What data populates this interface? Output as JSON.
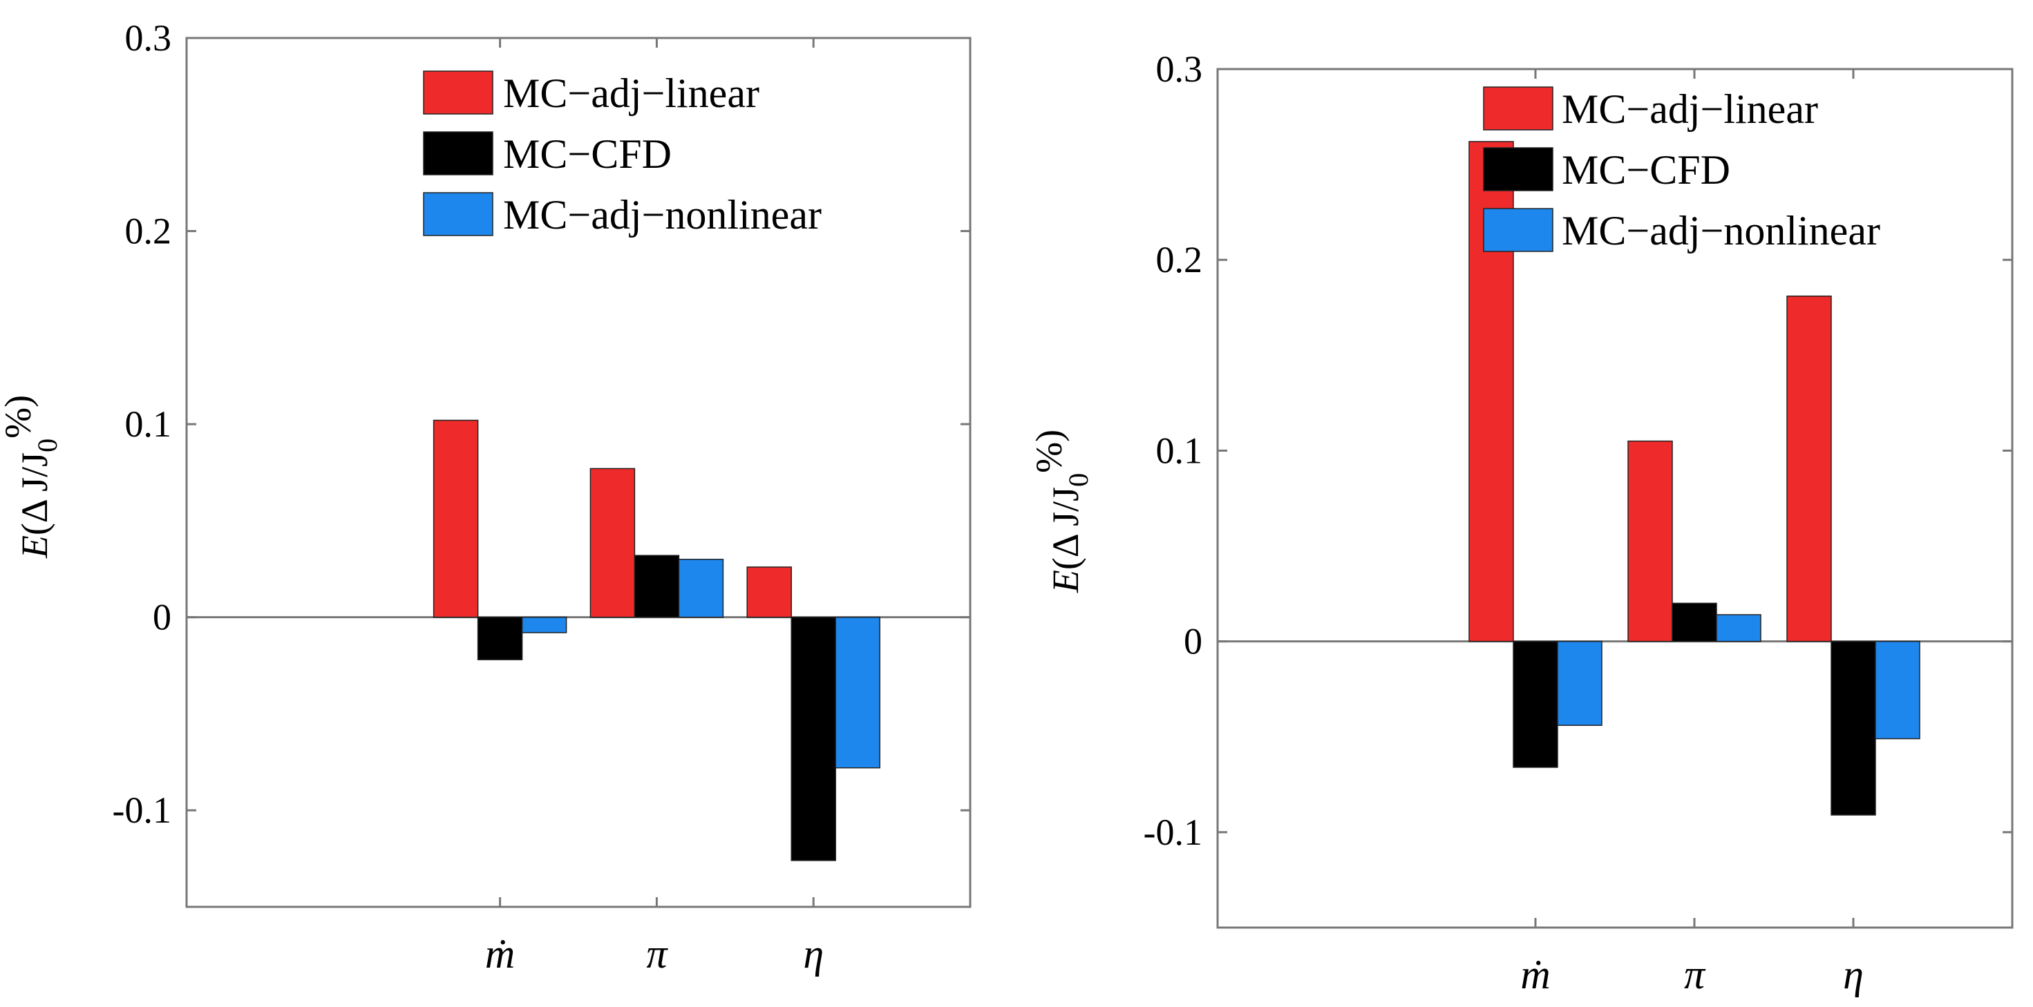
{
  "colors": {
    "MC-adj-linear": "#ee2a2a",
    "MC-CFD": "#000000",
    "MC-adj-nonlinear": "#1e87ee",
    "axis": "#777777"
  },
  "chart_data": [
    {
      "type": "bar",
      "title": "",
      "xlabel": "",
      "ylabel": "E(Δ J/J0%)",
      "ylabel_parts": {
        "func": "E",
        "body": "(Δ J/J",
        "sub": "0",
        "tail": "%)"
      },
      "ylim": [
        -0.15,
        0.3
      ],
      "yticks": [
        -0.1,
        0,
        0.1,
        0.2,
        0.3
      ],
      "ytick_labels": [
        "-0.1",
        "0",
        "0.1",
        "0.2",
        "0.3"
      ],
      "xlim": [
        0,
        5
      ],
      "categories": [
        "ṁ",
        "π",
        "η"
      ],
      "category_positions": [
        2,
        3,
        4
      ],
      "legend_position": "top-right",
      "series": [
        {
          "name": "MC−adj−linear",
          "key": "MC-adj-linear",
          "values": [
            0.102,
            0.077,
            0.026
          ]
        },
        {
          "name": "MC−CFD",
          "key": "MC-CFD",
          "values": [
            -0.022,
            0.032,
            -0.126
          ]
        },
        {
          "name": "MC−adj−nonlinear",
          "key": "MC-adj-nonlinear",
          "values": [
            -0.008,
            0.03,
            -0.078
          ]
        }
      ]
    },
    {
      "type": "bar",
      "title": "",
      "xlabel": "",
      "ylabel": "E(Δ J/J0%)",
      "ylabel_parts": {
        "func": "E",
        "body": "(Δ J/J",
        "sub": "0",
        "tail": "%)"
      },
      "ylim": [
        -0.15,
        0.3
      ],
      "yticks": [
        -0.1,
        0,
        0.1,
        0.2,
        0.3
      ],
      "ytick_labels": [
        "-0.1",
        "0",
        "0.1",
        "0.2",
        "0.3"
      ],
      "xlim": [
        0,
        5
      ],
      "categories": [
        "ṁ",
        "π",
        "η"
      ],
      "category_positions": [
        2,
        3,
        4
      ],
      "legend_position": "top-right",
      "series": [
        {
          "name": "MC−adj−linear",
          "key": "MC-adj-linear",
          "values": [
            0.262,
            0.105,
            0.181
          ]
        },
        {
          "name": "MC−CFD",
          "key": "MC-CFD",
          "values": [
            -0.066,
            0.02,
            -0.091
          ]
        },
        {
          "name": "MC−adj−nonlinear",
          "key": "MC-adj-nonlinear",
          "values": [
            -0.044,
            0.014,
            -0.051
          ]
        }
      ]
    }
  ]
}
